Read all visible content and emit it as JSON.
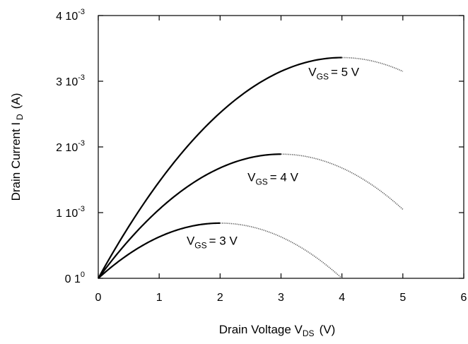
{
  "chart_data": {
    "type": "line",
    "title": "",
    "xlabel": "Drain Voltage V",
    "xlabel_sub": "DS",
    "xlabel_unit": "(V)",
    "ylabel": "Drain Current I",
    "ylabel_sub": "D",
    "ylabel_unit": "(A)",
    "xlim": [
      0,
      6
    ],
    "ylim": [
      0,
      0.004
    ],
    "x_ticks": [
      {
        "value": 0,
        "label": "0"
      },
      {
        "value": 1,
        "label": "1"
      },
      {
        "value": 2,
        "label": "2"
      },
      {
        "value": 3,
        "label": "3"
      },
      {
        "value": 4,
        "label": "4"
      },
      {
        "value": 5,
        "label": "5"
      },
      {
        "value": 6,
        "label": "6"
      }
    ],
    "y_ticks": [
      {
        "value": 0,
        "mantissa": "0 1",
        "exponent": "0"
      },
      {
        "value": 0.001,
        "mantissa": "1 10",
        "exponent": "-3"
      },
      {
        "value": 0.002,
        "mantissa": "2 10",
        "exponent": "-3"
      },
      {
        "value": 0.003,
        "mantissa": "3 10",
        "exponent": "-3"
      },
      {
        "value": 0.004,
        "mantissa": "4 10",
        "exponent": "-3"
      }
    ],
    "grid": false,
    "legend": "none",
    "colors": {
      "curve": "#000000",
      "dotted": "#555555",
      "axis": "#000000"
    },
    "series": [
      {
        "label_main": "V",
        "label_sub": "GS",
        "label_value": "= 5 V",
        "label_at": [
          3.45,
          0.00308
        ],
        "vt_over": 4,
        "k": 0.00021,
        "x": [
          0,
          0.5,
          1,
          1.5,
          2,
          2.5,
          3,
          3.5,
          4
        ],
        "y": [
          0,
          0.000788,
          0.00147,
          0.002048,
          0.00252,
          0.002888,
          0.00315,
          0.003308,
          0.00336
        ],
        "x_dotted": [
          4,
          4.25,
          4.5,
          4.75,
          5
        ],
        "y_dotted": [
          0.00336,
          0.003347,
          0.003308,
          0.003242,
          0.00315
        ]
      },
      {
        "label_main": "V",
        "label_sub": "GS",
        "label_value": "= 4 V",
        "label_at": [
          2.45,
          0.00148
        ],
        "vt_over": 3,
        "k": 0.00021,
        "x": [
          0,
          0.5,
          1,
          1.5,
          2,
          2.5,
          3
        ],
        "y": [
          0,
          0.000578,
          0.00105,
          0.001418,
          0.00168,
          0.001838,
          0.00189
        ],
        "x_dotted": [
          3,
          3.5,
          4,
          4.5,
          5
        ],
        "y_dotted": [
          0.00189,
          0.001838,
          0.00168,
          0.001418,
          0.00105
        ]
      },
      {
        "label_main": "V",
        "label_sub": "GS",
        "label_value": "= 3 V",
        "label_at": [
          1.45,
          0.00051
        ],
        "vt_over": 2,
        "k": 0.00021,
        "x": [
          0,
          0.5,
          1,
          1.5,
          2
        ],
        "y": [
          0,
          0.000368,
          0.00063,
          0.000788,
          0.00084
        ],
        "x_dotted": [
          2,
          2.5,
          3,
          3.5,
          4
        ],
        "y_dotted": [
          0.00084,
          0.000788,
          0.00063,
          0.000368,
          0
        ]
      }
    ]
  }
}
